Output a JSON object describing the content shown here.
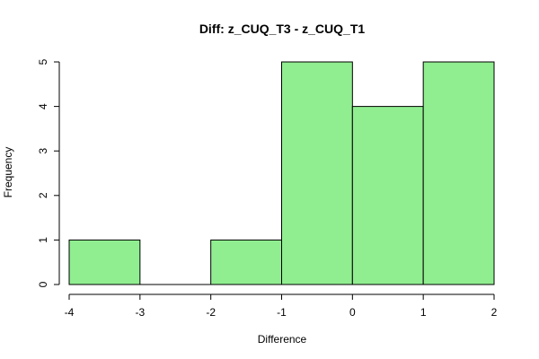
{
  "chart_data": {
    "type": "bar",
    "title": "Diff: z_CUQ_T3 - z_CUQ_T1",
    "xlabel": "Difference",
    "ylabel": "Frequency",
    "bins": [
      {
        "start": -4,
        "end": -3,
        "count": 1
      },
      {
        "start": -3,
        "end": -2,
        "count": 0
      },
      {
        "start": -2,
        "end": -1,
        "count": 1
      },
      {
        "start": -1,
        "end": 0,
        "count": 5
      },
      {
        "start": 0,
        "end": 1,
        "count": 4
      },
      {
        "start": 1,
        "end": 2,
        "count": 5
      }
    ],
    "xlim": [
      -4,
      2
    ],
    "ylim": [
      0,
      5
    ],
    "x_ticks": [
      "-4",
      "-3",
      "-2",
      "-1",
      "0",
      "1",
      "2"
    ],
    "y_ticks": [
      "0",
      "1",
      "2",
      "3",
      "4",
      "5"
    ],
    "bar_color": "#90ee90",
    "grid": false,
    "legend": "none"
  }
}
